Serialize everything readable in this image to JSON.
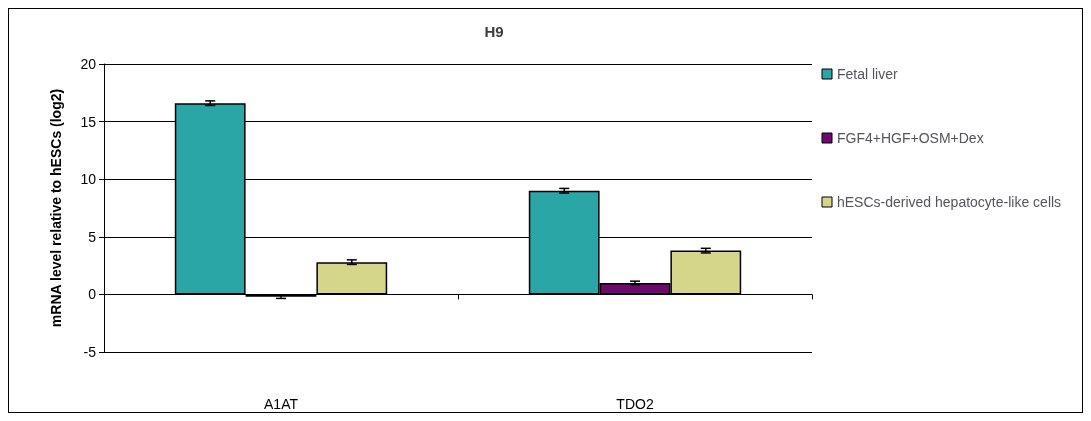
{
  "chart_data": {
    "type": "bar",
    "title": "H9",
    "ylabel": "mRNA level relative to hESCs (log2)",
    "categories": [
      "A1AT",
      "TDO2"
    ],
    "series": [
      {
        "name": "Fetal liver",
        "color": "#2aa6a6",
        "values": [
          16.6,
          9.0
        ],
        "errors": [
          0.2,
          0.2
        ]
      },
      {
        "name": "FGF4+HGF+OSM+Dex",
        "color": "#6e0a6e",
        "values": [
          -0.2,
          1.0
        ],
        "errors": [
          0.15,
          0.15
        ]
      },
      {
        "name": "hESCs-derived hepatocyte-like cells",
        "color": "#d6d68a",
        "values": [
          2.8,
          3.8
        ],
        "errors": [
          0.2,
          0.2
        ]
      }
    ],
    "ylim": [
      -5,
      20
    ],
    "yticks": [
      -5,
      0,
      5,
      10,
      15,
      20
    ],
    "grid": "y",
    "legend": "right"
  }
}
